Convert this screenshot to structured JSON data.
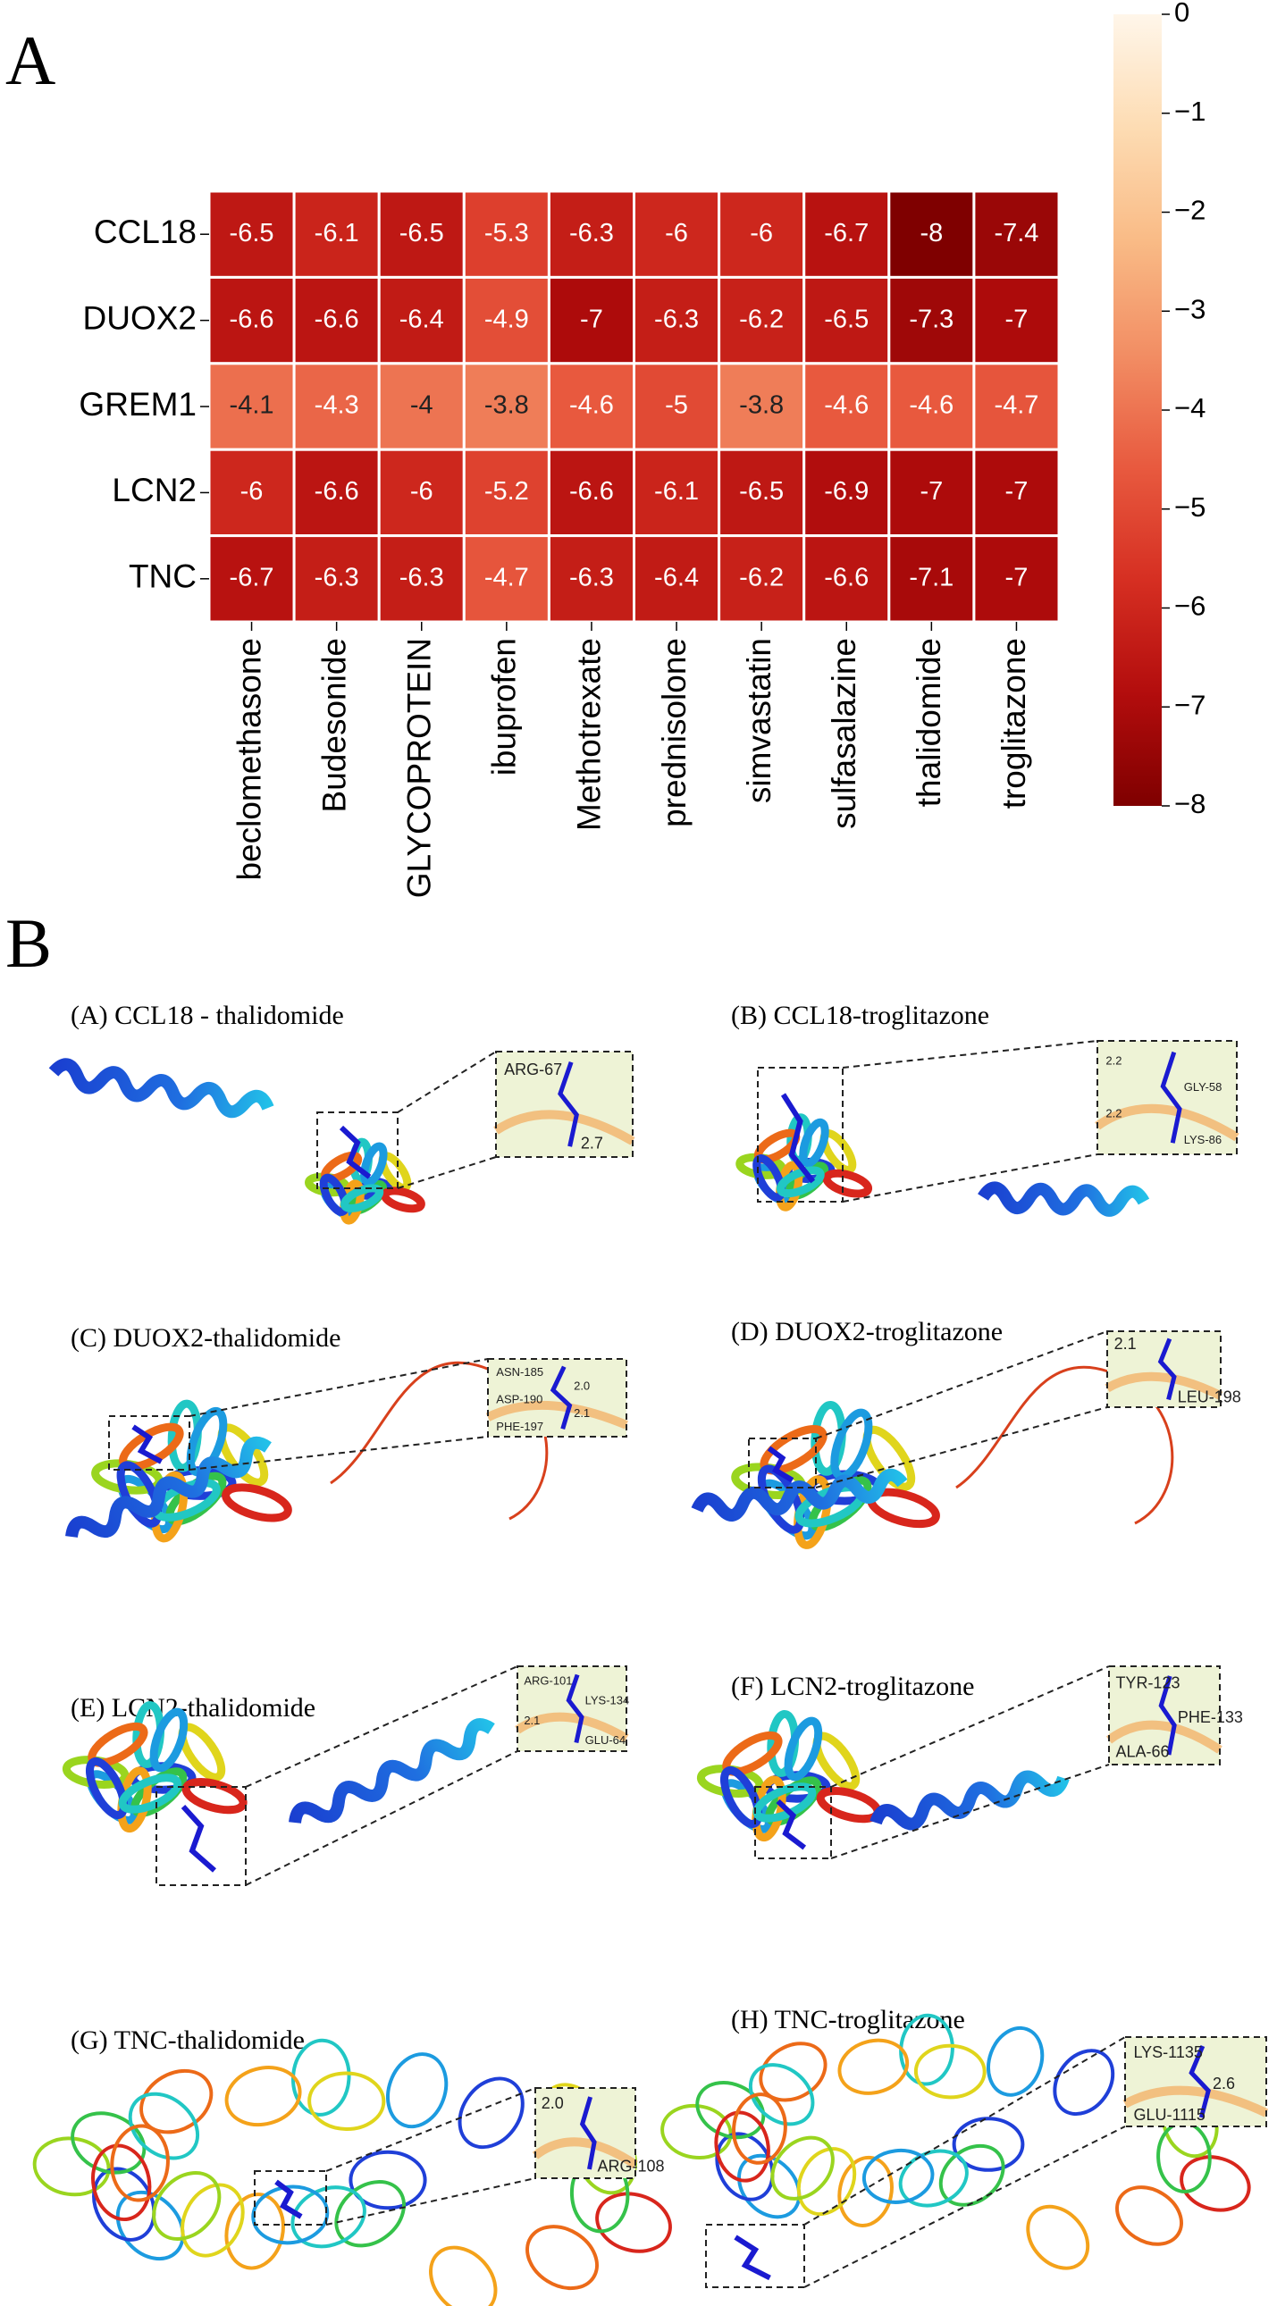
{
  "chart_data": {
    "type": "heatmap",
    "panel_label": "A",
    "x": [
      "beclomethasone",
      "Budesonide",
      "GLYCOPROTEIN",
      "ibuprofen",
      "Methotrexate",
      "prednisolone",
      "simvastatin",
      "sulfasalazine",
      "thalidomide",
      "troglitazone"
    ],
    "y": [
      "CCL18",
      "DUOX2",
      "GREM1",
      "LCN2",
      "TNC"
    ],
    "values": [
      [
        -6.5,
        -6.1,
        -6.5,
        -5.3,
        -6.3,
        -6,
        -6,
        -6.7,
        -8,
        -7.4
      ],
      [
        -6.6,
        -6.6,
        -6.4,
        -4.9,
        -7,
        -6.3,
        -6.2,
        -6.5,
        -7.3,
        -7
      ],
      [
        -4.1,
        -4.3,
        -4,
        -3.8,
        -4.6,
        -5,
        -3.8,
        -4.6,
        -4.6,
        -4.7
      ],
      [
        -6,
        -6.6,
        -6,
        -5.2,
        -6.6,
        -6.1,
        -6.5,
        -6.9,
        -7,
        -7
      ],
      [
        -6.7,
        -6.3,
        -6.3,
        -4.7,
        -6.3,
        -6.4,
        -6.2,
        -6.6,
        -7.1,
        -7
      ]
    ],
    "zlim": [
      -8,
      0
    ],
    "zticks": [
      0,
      {
        "value": -1,
        "label": "−1"
      },
      {
        "value": -2,
        "label": "−2"
      },
      {
        "value": -3,
        "label": "−3"
      },
      {
        "value": -4,
        "label": "−4"
      },
      {
        "value": -5,
        "label": "−5"
      },
      {
        "value": -6,
        "label": "−6"
      },
      {
        "value": -7,
        "label": "−7"
      },
      {
        "value": -8,
        "label": "−8"
      }
    ],
    "colormap": [
      "#7f0000",
      "#b30d0d",
      "#d62f22",
      "#e85a3f",
      "#f28e64",
      "#f9bb86",
      "#fddcb3",
      "#fff6ea"
    ]
  },
  "panel_b": {
    "label": "B",
    "panels": [
      {
        "title": "(A)  CCL18 - thalidomide",
        "inset_labels": [
          "ARG-67",
          "2.7"
        ]
      },
      {
        "title": "(B)  CCL18-troglitazone",
        "inset_labels": [
          "2.2",
          "GLY-58",
          "2.2",
          "LYS-86"
        ]
      },
      {
        "title": "(C)  DUOX2-thalidomide",
        "inset_labels": [
          "ASN-185",
          "2.0",
          "ASP-190",
          "2.1",
          "PHE-197"
        ]
      },
      {
        "title": "(D)  DUOX2-troglitazone",
        "inset_labels": [
          "2.1",
          "LEU-198"
        ]
      },
      {
        "title": "(E)  LCN2-thalidomide",
        "inset_labels": [
          "ARG-101",
          "LYS-134",
          "2.1",
          "GLU-64"
        ]
      },
      {
        "title": "(F)  LCN2-troglitazone",
        "inset_labels": [
          "TYR-123",
          "PHE-133",
          "ALA-66"
        ]
      },
      {
        "title": "(G)  TNC-thalidomide",
        "inset_labels": [
          "2.0",
          "ARG-108"
        ]
      },
      {
        "title": "(H)  TNC-troglitazone",
        "inset_labels": [
          "LYS-1135",
          "2.6",
          "GLU-1115"
        ]
      }
    ]
  }
}
